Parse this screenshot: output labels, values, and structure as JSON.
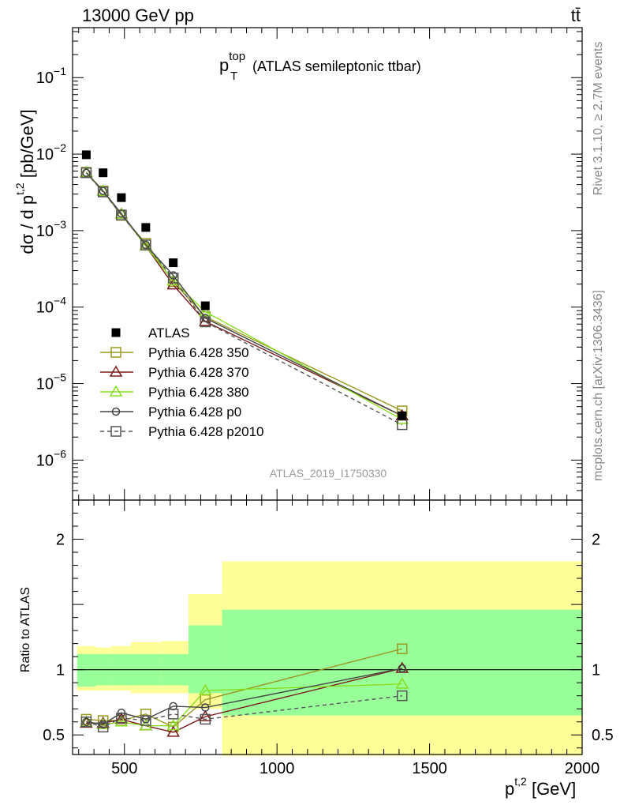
{
  "header": {
    "energy_label": "13000 GeV pp",
    "process_label": "tt̄"
  },
  "side_labels": {
    "rivet": "Rivet 3.1.10, ≥ 2.7M events",
    "mcplots": "mcplots.cern.ch [arXiv:1306.3436]"
  },
  "analysis_id": "ATLAS_2019_I1750330",
  "chart_data": [
    {
      "type": "line",
      "panel": "main",
      "title_main": "p",
      "title_sup": "top",
      "title_sub": "T",
      "title_suffix": "(ATLAS semileptonic ttbar)",
      "ylabel_main": "dσ / d p",
      "ylabel_sup": "t,2",
      "ylabel_sub": "T",
      "ylabel_unit": "[pb/GeV]",
      "y_scale": "log",
      "ylim": [
        3e-07,
        0.45
      ],
      "xlim": [
        330,
        2000
      ],
      "y_tick_labels": [
        {
          "base": "10",
          "exp": "−1",
          "value": 0.1
        },
        {
          "base": "10",
          "exp": "−2",
          "value": 0.01
        },
        {
          "base": "10",
          "exp": "−3",
          "value": 0.001
        },
        {
          "base": "10",
          "exp": "−4",
          "value": 0.0001
        },
        {
          "base": "10",
          "exp": "−5",
          "value": 1e-05
        },
        {
          "base": "10",
          "exp": "−6",
          "value": 1e-06
        }
      ],
      "legend_position": "bottom-left",
      "data": {
        "name": "ATLAS",
        "color": "#000000",
        "x": [
          375,
          430,
          490,
          570,
          660,
          765,
          1410
        ],
        "y": [
          0.0098,
          0.0057,
          0.0027,
          0.0011,
          0.00038,
          0.000104,
          3.8e-06
        ]
      },
      "series": [
        {
          "name": "Pythia 6.428 350",
          "color": "#999922",
          "marker": "square",
          "dash": "solid",
          "x": [
            375,
            430,
            490,
            570,
            660,
            765,
            1410
          ],
          "y": [
            0.0058,
            0.0033,
            0.00158,
            0.00068,
            0.000215,
            7.5e-05,
            4.4e-06
          ]
        },
        {
          "name": "Pythia 6.428 370",
          "color": "#7a1a1a",
          "marker": "triangle",
          "dash": "solid",
          "x": [
            375,
            430,
            490,
            570,
            660,
            765,
            1410
          ],
          "y": [
            0.0057,
            0.0033,
            0.00165,
            0.00063,
            0.000195,
            6.5e-05,
            3.8e-06
          ]
        },
        {
          "name": "Pythia 6.428 380",
          "color": "#88dd22",
          "marker": "triangle",
          "dash": "solid",
          "x": [
            375,
            430,
            490,
            570,
            660,
            765,
            1410
          ],
          "y": [
            0.0058,
            0.0033,
            0.00165,
            0.00063,
            0.00022,
            8.7e-05,
            3.4e-06
          ]
        },
        {
          "name": "Pythia 6.428 p0",
          "color": "#444444",
          "marker": "circle",
          "dash": "solid",
          "x": [
            375,
            430,
            490,
            570,
            660,
            765,
            1410
          ],
          "y": [
            0.0057,
            0.0033,
            0.00167,
            0.00065,
            0.00026,
            7.2e-05,
            3.8e-06
          ]
        },
        {
          "name": "Pythia 6.428 p2010",
          "color": "#555555",
          "marker": "square",
          "dash": "dashed",
          "x": [
            375,
            430,
            490,
            570,
            660,
            765,
            1410
          ],
          "y": [
            0.0057,
            0.0032,
            0.0016,
            0.00065,
            0.00024,
            6.4e-05,
            2.9e-06
          ]
        }
      ]
    },
    {
      "type": "line",
      "panel": "ratio",
      "ylabel": "Ratio to ATLAS",
      "ylim": [
        0.35,
        2.3
      ],
      "xlim": [
        330,
        2000
      ],
      "y_ticks": [
        0.5,
        1,
        2
      ],
      "y_tick_labels": [
        "0.5",
        "1",
        "2"
      ],
      "xlabel_main": "p",
      "xlabel_sup": "t,2",
      "xlabel_sub": "T",
      "xlabel_unit": "[GeV]",
      "x_ticks": [
        500,
        1000,
        1500,
        2000
      ],
      "x_tick_labels": [
        "500",
        "1000",
        "1500",
        "2000"
      ],
      "bins": [
        {
          "lo": 345,
          "hi": 405,
          "y1_lo": 0.87,
          "y1_hi": 1.12,
          "y2_lo": 0.84,
          "y2_hi": 1.18
        },
        {
          "lo": 405,
          "hi": 455,
          "y1_lo": 0.88,
          "y1_hi": 1.12,
          "y2_lo": 0.84,
          "y2_hi": 1.17
        },
        {
          "lo": 455,
          "hi": 520,
          "y1_lo": 0.88,
          "y1_hi": 1.12,
          "y2_lo": 0.84,
          "y2_hi": 1.18
        },
        {
          "lo": 520,
          "hi": 620,
          "y1_lo": 0.88,
          "y1_hi": 1.12,
          "y2_lo": 0.82,
          "y2_hi": 1.21
        },
        {
          "lo": 620,
          "hi": 710,
          "y1_lo": 0.88,
          "y1_hi": 1.12,
          "y2_lo": 0.82,
          "y2_hi": 1.22
        },
        {
          "lo": 710,
          "hi": 820,
          "y1_lo": 0.82,
          "y1_hi": 1.34,
          "y2_lo": 0.7,
          "y2_hi": 1.58
        },
        {
          "lo": 820,
          "hi": 2000,
          "y1_lo": 0.65,
          "y1_hi": 1.46,
          "y2_lo": 0.34,
          "y2_hi": 1.83
        }
      ],
      "series": [
        {
          "name": "Pythia 6.428 350",
          "color": "#999922",
          "marker": "square",
          "dash": "solid",
          "x": [
            375,
            430,
            490,
            570,
            660,
            765,
            1410
          ],
          "y": [
            0.62,
            0.61,
            0.61,
            0.66,
            0.56,
            0.77,
            1.16
          ]
        },
        {
          "name": "Pythia 6.428 370",
          "color": "#7a1a1a",
          "marker": "triangle",
          "dash": "solid",
          "x": [
            375,
            430,
            490,
            570,
            660,
            765,
            1410
          ],
          "y": [
            0.59,
            0.59,
            0.62,
            0.57,
            0.52,
            0.64,
            1.01
          ]
        },
        {
          "name": "Pythia 6.428 380",
          "color": "#88dd22",
          "marker": "triangle",
          "dash": "solid",
          "x": [
            375,
            430,
            490,
            570,
            660,
            765,
            1410
          ],
          "y": [
            0.6,
            0.58,
            0.6,
            0.57,
            0.57,
            0.84,
            0.89
          ]
        },
        {
          "name": "Pythia 6.428 p0",
          "color": "#444444",
          "marker": "circle",
          "dash": "solid",
          "x": [
            375,
            430,
            490,
            570,
            660,
            765,
            1410
          ],
          "y": [
            0.6,
            0.58,
            0.67,
            0.62,
            0.72,
            0.71,
            1.01
          ]
        },
        {
          "name": "Pythia 6.428 p2010",
          "color": "#555555",
          "marker": "square",
          "dash": "dashed",
          "x": [
            375,
            430,
            490,
            570,
            660,
            765,
            1410
          ],
          "y": [
            0.6,
            0.56,
            0.63,
            0.61,
            0.66,
            0.62,
            0.8
          ]
        }
      ]
    }
  ]
}
